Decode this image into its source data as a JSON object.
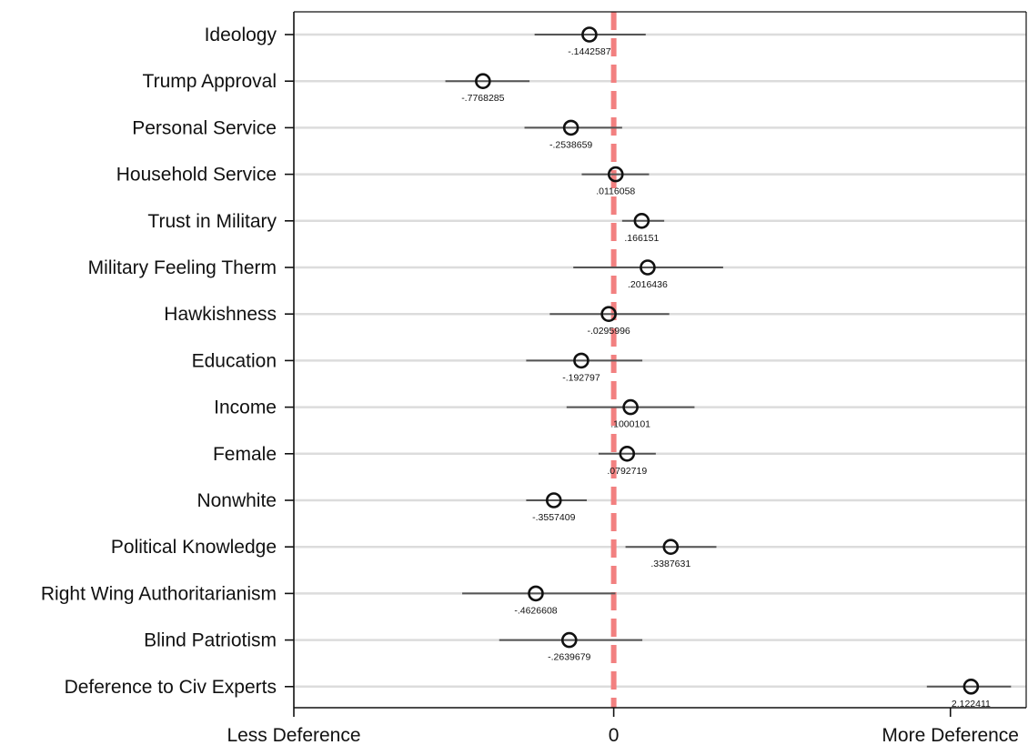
{
  "chart_data": {
    "type": "dot-and-whisker",
    "title": "",
    "xlabel": "",
    "ylabel": "",
    "grid": true,
    "xlim": [
      -1.9,
      2.45
    ],
    "reference_line": {
      "x": 0,
      "color": "#f28080",
      "style": "dashed"
    },
    "x_ticks": [
      {
        "value": -1.9,
        "label": "Less Deference"
      },
      {
        "value": 0,
        "label": "0"
      },
      {
        "value": 2.0,
        "label": "More Deference"
      }
    ],
    "categories": [
      "Ideology",
      "Trump Approval",
      "Personal Service",
      "Household Service",
      "Trust in Military",
      "Military Feeling Therm",
      "Hawkishness",
      "Education",
      "Income",
      "Female",
      "Nonwhite",
      "Political Knowledge",
      "Right Wing Authoritarianism",
      "Blind Patriotism",
      "Deference to Civ Experts"
    ],
    "estimates": [
      {
        "value": -0.1442587,
        "label": "-.1442587",
        "ci": [
          -0.47,
          0.19
        ]
      },
      {
        "value": -0.7768285,
        "label": "-.7768285",
        "ci": [
          -1.0,
          -0.5
        ]
      },
      {
        "value": -0.2538659,
        "label": "-.2538659",
        "ci": [
          -0.53,
          0.05
        ]
      },
      {
        "value": 0.0116058,
        "label": ".0116058",
        "ci": [
          -0.19,
          0.21
        ]
      },
      {
        "value": 0.166151,
        "label": ".166151",
        "ci": [
          0.05,
          0.3
        ]
      },
      {
        "value": 0.2016436,
        "label": ".2016436",
        "ci": [
          -0.24,
          0.65
        ]
      },
      {
        "value": -0.0295996,
        "label": "-.0295996",
        "ci": [
          -0.38,
          0.33
        ]
      },
      {
        "value": -0.192797,
        "label": "-.192797",
        "ci": [
          -0.52,
          0.17
        ]
      },
      {
        "value": 0.1000101,
        "label": ".1000101",
        "ci": [
          -0.28,
          0.48
        ]
      },
      {
        "value": 0.0792719,
        "label": ".0792719",
        "ci": [
          -0.09,
          0.25
        ]
      },
      {
        "value": -0.3557409,
        "label": "-.3557409",
        "ci": [
          -0.52,
          -0.16
        ]
      },
      {
        "value": 0.3387631,
        "label": ".3387631",
        "ci": [
          0.07,
          0.61
        ]
      },
      {
        "value": -0.4626608,
        "label": "-.4626608",
        "ci": [
          -0.9,
          0.01
        ]
      },
      {
        "value": -0.2639679,
        "label": "-.2639679",
        "ci": [
          -0.68,
          0.17
        ]
      },
      {
        "value": 2.122411,
        "label": "2.122411",
        "ci": [
          1.86,
          2.36
        ]
      }
    ],
    "colors": {
      "grid": "#dcdcdc",
      "ci_line": "#555555",
      "marker": "#111111",
      "axis": "#111111",
      "zero_line": "#f28080"
    }
  }
}
